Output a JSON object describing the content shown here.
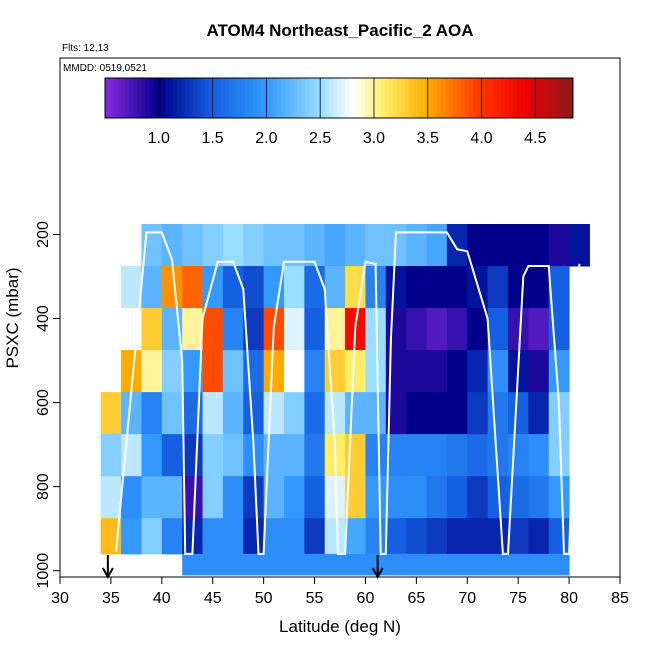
{
  "chart_data": {
    "type": "heatmap",
    "title": "ATOM4 Northeast_Pacific_2 AOA",
    "notes": [
      "Flts: 12,13",
      "MMDD: 0519,0521"
    ],
    "x_label": "Latitude (deg N)",
    "y_label": "PSXC (mbar)",
    "xlim": [
      30,
      85
    ],
    "xticks": [
      30,
      35,
      40,
      45,
      50,
      55,
      60,
      65,
      70,
      75,
      80,
      85
    ],
    "ylim": [
      1015,
      -220
    ],
    "yticks": [
      200,
      400,
      600,
      800,
      1000
    ],
    "lat_edges": [
      34,
      36,
      38,
      40,
      42,
      44,
      46,
      48,
      50,
      52,
      54,
      56,
      58,
      60,
      62,
      64,
      66,
      68,
      70,
      72,
      74,
      76,
      78,
      80,
      82
    ],
    "p_edges": [
      175,
      275,
      375,
      475,
      575,
      675,
      775,
      875,
      960,
      1010
    ],
    "z": [
      [
        null,
        null,
        2.3,
        2.2,
        2.3,
        2.4,
        2.5,
        2.4,
        2.3,
        2.3,
        2.2,
        2.1,
        2.2,
        2.3,
        2.3,
        2.2,
        2.1,
        1.2,
        1.0,
        1.0,
        1.0,
        1.0,
        0.9,
        1.1
      ],
      [
        null,
        2.6,
        2.2,
        3.6,
        3.8,
        2.0,
        1.5,
        1.4,
        2.0,
        2.5,
        1.6,
        2.2,
        3.2,
        1.8,
        1.1,
        1.0,
        1.0,
        1.0,
        1.1,
        1.3,
        1.0,
        1.0,
        1.5,
        null
      ],
      [
        null,
        2.8,
        3.3,
        2.2,
        3.0,
        3.9,
        1.8,
        1.3,
        3.9,
        2.7,
        1.5,
        3.0,
        4.3,
        2.5,
        0.9,
        0.8,
        0.7,
        0.8,
        1.0,
        1.5,
        0.8,
        0.7,
        1.5,
        null
      ],
      [
        null,
        3.5,
        3.0,
        2.4,
        2.0,
        3.9,
        2.3,
        1.6,
        3.5,
        2.8,
        1.8,
        3.3,
        3.1,
        2.5,
        0.9,
        0.9,
        0.9,
        1.0,
        1.2,
        1.9,
        1.1,
        0.9,
        2.0,
        null
      ],
      [
        3.3,
        2.2,
        1.8,
        2.3,
        1.6,
        2.6,
        2.2,
        1.5,
        2.6,
        2.4,
        1.6,
        2.6,
        2.2,
        2.2,
        0.9,
        1.0,
        1.0,
        1.0,
        1.3,
        1.7,
        1.5,
        1.2,
        2.4,
        null
      ],
      [
        2.4,
        2.6,
        2.0,
        1.5,
        1.3,
        2.4,
        2.3,
        1.9,
        2.2,
        2.2,
        1.7,
        3.1,
        3.3,
        1.8,
        1.8,
        1.8,
        1.8,
        1.7,
        1.6,
        1.7,
        1.8,
        1.9,
        2.4,
        null
      ],
      [
        2.6,
        1.9,
        2.2,
        2.2,
        0.8,
        2.4,
        1.9,
        1.3,
        2.2,
        2.0,
        1.5,
        2.7,
        3.3,
        2.0,
        1.9,
        1.9,
        1.7,
        1.5,
        1.3,
        1.5,
        1.6,
        1.7,
        2.0,
        null
      ],
      [
        3.4,
        2.0,
        2.4,
        1.8,
        1.2,
        1.9,
        1.9,
        1.2,
        1.9,
        1.9,
        1.3,
        2.6,
        2.1,
        1.8,
        1.5,
        1.4,
        1.3,
        1.2,
        1.2,
        1.2,
        1.3,
        1.2,
        1.5,
        null
      ],
      [
        null,
        null,
        null,
        null,
        1.9,
        1.9,
        1.9,
        1.9,
        1.9,
        1.9,
        1.9,
        1.9,
        1.9,
        1.9,
        1.9,
        1.9,
        1.9,
        1.9,
        1.9,
        1.9,
        1.9,
        1.9,
        1.9,
        null
      ]
    ],
    "colorbar_lim": [
      0.5,
      4.85
    ],
    "colorbar_ticks": [
      {
        "value": 1,
        "label": "1.0"
      },
      1.5,
      {
        "value": 2,
        "label": "2.0"
      },
      2.5,
      {
        "value": 3,
        "label": "3.0"
      },
      3.5,
      {
        "value": 4,
        "label": "4.0"
      },
      4.5
    ],
    "colorscale": [
      [
        0.5,
        "#8a2be2"
      ],
      [
        1.0,
        "#00008b"
      ],
      [
        1.5,
        "#1560e0"
      ],
      [
        2.0,
        "#3399ff"
      ],
      [
        2.5,
        "#99ddff"
      ],
      [
        2.8,
        "#ffffff"
      ],
      [
        3.1,
        "#ffee66"
      ],
      [
        3.5,
        "#ffaa00"
      ],
      [
        4.0,
        "#ff3300"
      ],
      [
        4.4,
        "#ee0000"
      ],
      [
        4.85,
        "#8b1a1a"
      ]
    ],
    "track": {
      "x": [
        35.5,
        38.5,
        40,
        41,
        42,
        42.3,
        43,
        44,
        45.5,
        47,
        48,
        49,
        49.5,
        50,
        51,
        52,
        55,
        56,
        57,
        57.3,
        58,
        59,
        60,
        61,
        61.5,
        62,
        62.5,
        63,
        68,
        69,
        70,
        72,
        73.5,
        74,
        75.5,
        76,
        78,
        79,
        79.5,
        80,
        81
      ],
      "y": [
        955,
        195,
        195,
        260,
        500,
        960,
        960,
        400,
        265,
        265,
        330,
        700,
        960,
        960,
        420,
        265,
        265,
        330,
        700,
        960,
        960,
        420,
        265,
        270,
        960,
        960,
        450,
        195,
        195,
        235,
        240,
        400,
        960,
        960,
        300,
        275,
        275,
        600,
        960,
        960,
        270
      ],
      "color": "#ffffff"
    },
    "arrows_x": [
      34.7,
      61.2
    ]
  }
}
